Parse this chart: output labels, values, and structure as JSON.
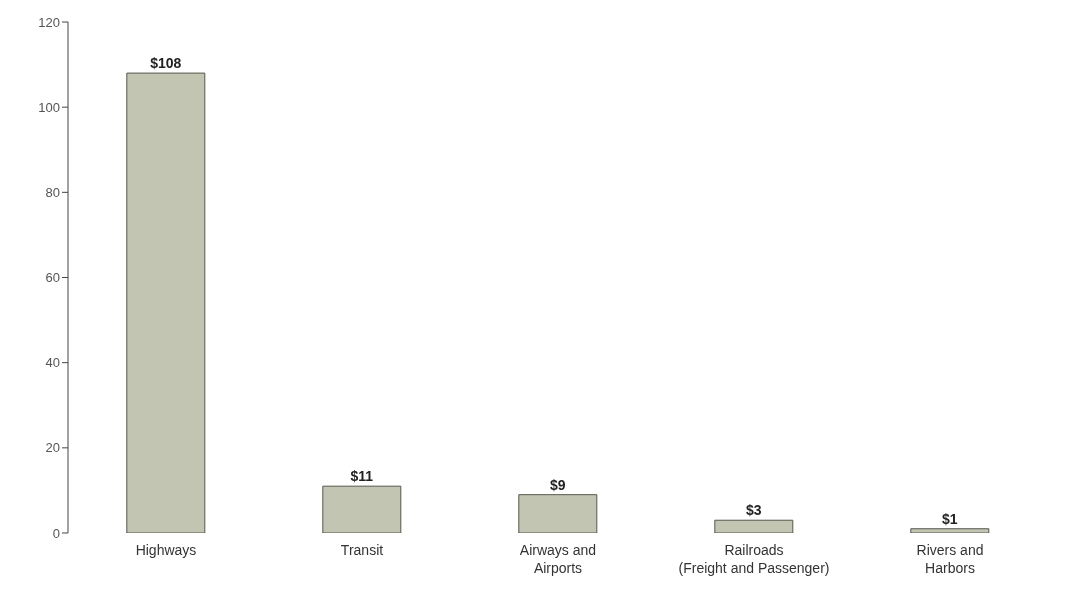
{
  "chart_data": {
    "type": "bar",
    "categories": [
      "Highways",
      "Transit",
      "Airways and\nAirports",
      "Railroads\n(Freight and Passenger)",
      "Rivers and\nHarbors"
    ],
    "values": [
      108,
      11,
      9,
      3,
      1
    ],
    "value_labels": [
      "$108",
      "$11",
      "$9",
      "$3",
      "$1"
    ],
    "color": "#c3c5b3",
    "ylim": [
      0,
      120
    ],
    "yticks": [
      0,
      20,
      40,
      60,
      80,
      100,
      120
    ],
    "grid": false,
    "legend": false
  }
}
